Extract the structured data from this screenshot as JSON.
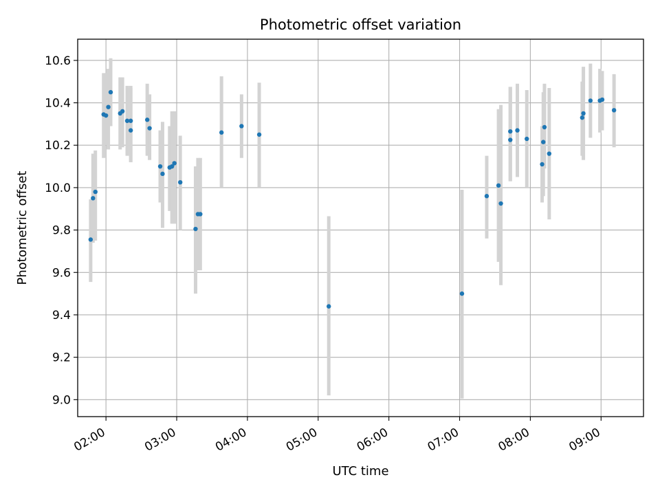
{
  "chart_data": {
    "type": "scatter",
    "title": "Photometric offset variation",
    "xlabel": "UTC time",
    "ylabel": "Photometric offset",
    "x_unit": "UTC time (HH:MM)",
    "xlim": [
      "01:36",
      "09:36"
    ],
    "ylim": [
      8.92,
      10.7
    ],
    "x_ticks": [
      "02:00",
      "03:00",
      "04:00",
      "05:00",
      "06:00",
      "07:00",
      "08:00",
      "09:00"
    ],
    "y_ticks": [
      "9.0",
      "9.2",
      "9.4",
      "9.6",
      "9.8",
      "10.0",
      "10.2",
      "10.4",
      "10.6"
    ],
    "grid": true,
    "colors": {
      "points": "#1f77b4",
      "errorbars": "#d3d3d3",
      "grid": "#b0b0b0"
    },
    "series": [
      {
        "x": [
          "01:47",
          "01:49",
          "01:51",
          "01:58",
          "02:00",
          "02:02",
          "02:04",
          "02:12",
          "02:14",
          "02:18",
          "02:21",
          "02:21",
          "02:35",
          "02:37",
          "02:46",
          "02:48",
          "02:54",
          "02:56",
          "02:58",
          "03:03",
          "03:16",
          "03:18",
          "03:20",
          "03:38",
          "03:55",
          "04:10",
          "05:09",
          "07:02",
          "07:23",
          "07:33",
          "07:35",
          "07:43",
          "07:43",
          "07:49",
          "07:57",
          "08:10",
          "08:11",
          "08:12",
          "08:16",
          "08:44",
          "08:45",
          "08:51",
          "08:59",
          "09:01",
          "09:11"
        ],
        "y": [
          9.755,
          9.95,
          9.98,
          10.345,
          10.34,
          10.38,
          10.45,
          10.35,
          10.36,
          10.315,
          10.315,
          10.27,
          10.32,
          10.28,
          10.1,
          10.065,
          10.095,
          10.1,
          10.115,
          10.025,
          9.805,
          9.875,
          9.875,
          10.26,
          10.29,
          10.25,
          9.44,
          9.5,
          9.96,
          10.01,
          9.925,
          10.265,
          10.225,
          10.27,
          10.23,
          10.11,
          10.215,
          10.285,
          10.16,
          10.33,
          10.35,
          10.41,
          10.41,
          10.415,
          10.365
        ],
        "err_low": [
          9.555,
          9.74,
          9.75,
          10.14,
          10.2,
          10.18,
          10.29,
          10.18,
          10.19,
          10.15,
          10.12,
          10.12,
          10.15,
          10.13,
          9.93,
          9.81,
          9.89,
          9.83,
          9.83,
          9.8,
          9.5,
          9.61,
          9.61,
          10.0,
          10.14,
          10.0,
          9.02,
          9.005,
          9.76,
          9.65,
          9.54,
          10.03,
          10.03,
          10.05,
          10.0,
          9.93,
          9.96,
          10.09,
          9.85,
          10.15,
          10.13,
          10.235,
          10.26,
          10.27,
          10.19
        ],
        "err_high": [
          9.945,
          10.16,
          10.175,
          10.54,
          10.54,
          10.56,
          10.61,
          10.52,
          10.52,
          10.48,
          10.48,
          10.47,
          10.49,
          10.44,
          10.27,
          10.31,
          10.29,
          10.36,
          10.36,
          10.245,
          10.1,
          10.14,
          10.14,
          10.525,
          10.44,
          10.495,
          9.865,
          9.99,
          10.15,
          10.37,
          10.39,
          10.475,
          10.475,
          10.49,
          10.46,
          10.29,
          10.45,
          10.49,
          10.47,
          10.5,
          10.57,
          10.585,
          10.56,
          10.55,
          10.535
        ]
      }
    ]
  }
}
